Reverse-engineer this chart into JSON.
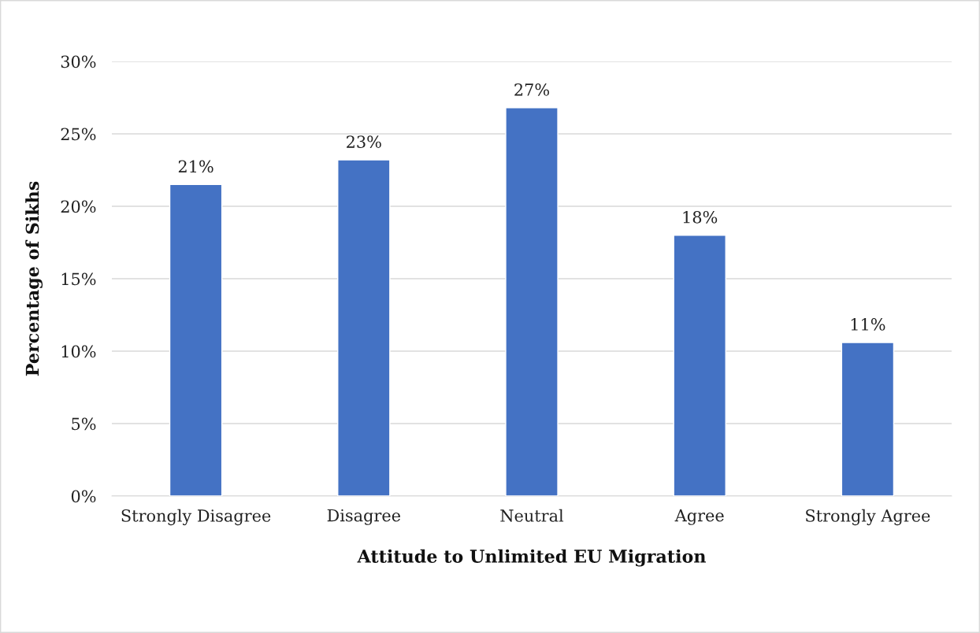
{
  "chart_data": {
    "type": "bar",
    "xlabel": "Attitude to Unlimited EU Migration",
    "ylabel": "Percentage of Sikhs",
    "categories": [
      "Strongly Disagree",
      "Disagree",
      "Neutral",
      "Agree",
      "Strongly Agree"
    ],
    "values": [
      21.5,
      23.2,
      26.8,
      18.0,
      10.6
    ],
    "value_labels": [
      "21%",
      "23%",
      "27%",
      "18%",
      "11%"
    ],
    "color": "#4472c4",
    "ylim": [
      0,
      30
    ],
    "yticks": [
      {
        "value": 0,
        "label": "0%"
      },
      {
        "value": 5,
        "label": "5%"
      },
      {
        "value": 10,
        "label": "10%"
      },
      {
        "value": 15,
        "label": "15%"
      },
      {
        "value": 20,
        "label": "20%"
      },
      {
        "value": 25,
        "label": "25%"
      },
      {
        "value": 30,
        "label": "30%"
      }
    ],
    "grid": "y"
  }
}
